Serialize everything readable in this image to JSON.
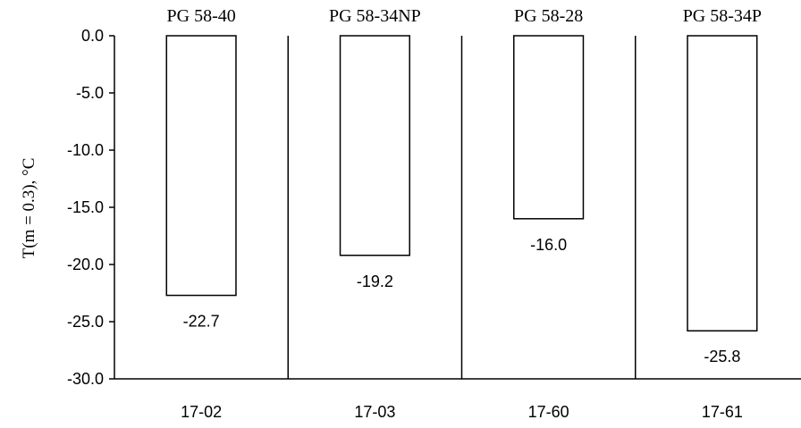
{
  "chart_data": {
    "type": "bar",
    "categories": [
      "17-02",
      "17-03",
      "17-60",
      "17-61"
    ],
    "group_labels": [
      "PG 58-40",
      "PG 58-34NP",
      "PG 58-28",
      "PG 58-34P"
    ],
    "values": [
      -22.7,
      -19.2,
      -16.0,
      -25.8
    ],
    "data_labels": [
      "-22.7",
      "-19.2",
      "-16.0",
      "-25.8"
    ],
    "ylabel": "T(m = 0.3), °C",
    "ylim": [
      -30,
      0
    ],
    "yticks": [
      0,
      -5,
      -10,
      -15,
      -20,
      -25,
      -30
    ],
    "ytick_labels": [
      "0.0",
      "-5.0",
      "-10.0",
      "-15.0",
      "-20.0",
      "-25.0",
      "-30.0"
    ],
    "grid": false,
    "colors": {
      "bar_fill": "#ffffff",
      "bar_stroke": "#000000",
      "axis": "#000000"
    }
  }
}
